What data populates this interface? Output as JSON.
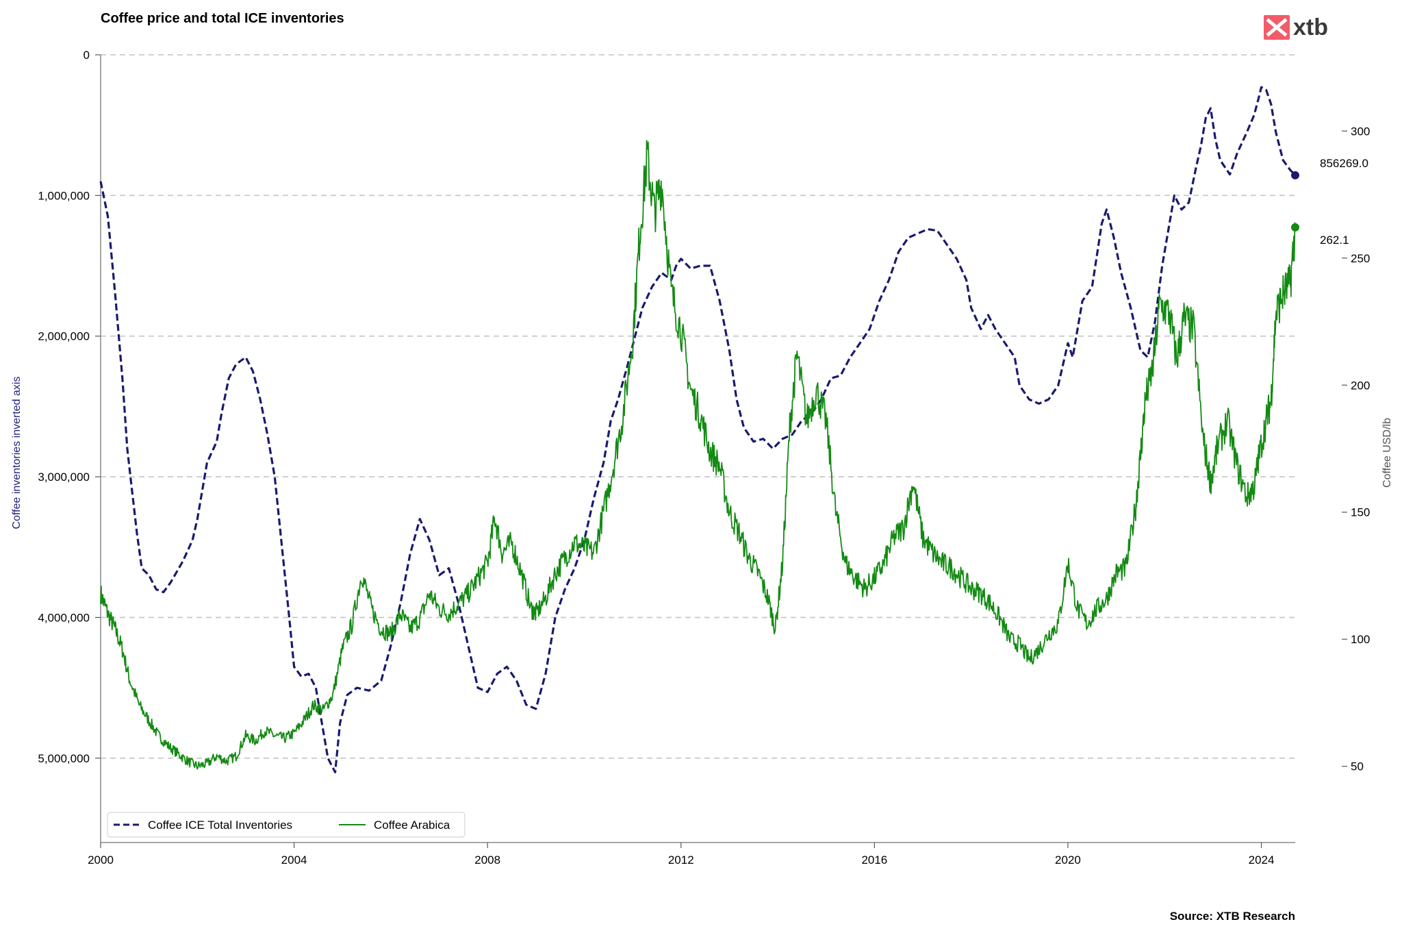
{
  "brand": {
    "name": "xtb",
    "accent": "#f25c69",
    "text_color": "#3a3a3a"
  },
  "source": "Source: XTB Research",
  "chart_data": {
    "type": "line",
    "title": "Coffee price and total ICE inventories",
    "left_axis": {
      "label": "Coffee inventories inverted axis",
      "inverted": true,
      "range": [
        0,
        5600000
      ],
      "ticks": [
        0,
        1000000,
        2000000,
        3000000,
        4000000,
        5000000
      ],
      "tick_labels": [
        "0",
        "1,000,000",
        "2,000,000",
        "3,000,000",
        "4,000,000",
        "5,000,000"
      ],
      "color": "#1f1f7a"
    },
    "right_axis": {
      "label": "Coffee USD/lb",
      "range": [
        20,
        330
      ],
      "ticks": [
        50,
        100,
        150,
        200,
        250,
        300
      ],
      "tick_labels": [
        "50",
        "100",
        "150",
        "200",
        "250",
        "300"
      ],
      "color": "#555555"
    },
    "x_axis": {
      "range": [
        2000,
        2024.7
      ],
      "ticks": [
        2000,
        2004,
        2008,
        2012,
        2016,
        2020,
        2024
      ],
      "tick_labels": [
        "2000",
        "2004",
        "2008",
        "2012",
        "2016",
        "2020",
        "2024"
      ]
    },
    "grid": "horizontal dashed",
    "legend_position": "bottom-left",
    "series": [
      {
        "name": "Coffee ICE Total Inventories",
        "axis": "left",
        "color": "#1a1a6e",
        "style": "dashed",
        "last_value_label": "856269.0",
        "points": [
          [
            2000.0,
            900000
          ],
          [
            2000.15,
            1150000
          ],
          [
            2000.3,
            1700000
          ],
          [
            2000.45,
            2300000
          ],
          [
            2000.55,
            2800000
          ],
          [
            2000.65,
            3100000
          ],
          [
            2000.75,
            3400000
          ],
          [
            2000.85,
            3650000
          ],
          [
            2001.0,
            3700000
          ],
          [
            2001.15,
            3800000
          ],
          [
            2001.3,
            3820000
          ],
          [
            2001.45,
            3750000
          ],
          [
            2001.7,
            3600000
          ],
          [
            2001.9,
            3450000
          ],
          [
            2002.0,
            3300000
          ],
          [
            2002.2,
            2900000
          ],
          [
            2002.4,
            2750000
          ],
          [
            2002.5,
            2550000
          ],
          [
            2002.65,
            2300000
          ],
          [
            2002.8,
            2200000
          ],
          [
            2003.0,
            2150000
          ],
          [
            2003.15,
            2250000
          ],
          [
            2003.3,
            2450000
          ],
          [
            2003.45,
            2700000
          ],
          [
            2003.6,
            3000000
          ],
          [
            2003.75,
            3500000
          ],
          [
            2003.9,
            4000000
          ],
          [
            2004.0,
            4350000
          ],
          [
            2004.15,
            4420000
          ],
          [
            2004.3,
            4400000
          ],
          [
            2004.45,
            4500000
          ],
          [
            2004.55,
            4700000
          ],
          [
            2004.7,
            5000000
          ],
          [
            2004.85,
            5100000
          ],
          [
            2004.95,
            4750000
          ],
          [
            2005.1,
            4550000
          ],
          [
            2005.3,
            4500000
          ],
          [
            2005.55,
            4520000
          ],
          [
            2005.8,
            4450000
          ],
          [
            2006.0,
            4200000
          ],
          [
            2006.2,
            3900000
          ],
          [
            2006.4,
            3550000
          ],
          [
            2006.6,
            3300000
          ],
          [
            2006.8,
            3450000
          ],
          [
            2007.0,
            3700000
          ],
          [
            2007.2,
            3650000
          ],
          [
            2007.4,
            3900000
          ],
          [
            2007.6,
            4200000
          ],
          [
            2007.8,
            4500000
          ],
          [
            2008.0,
            4530000
          ],
          [
            2008.2,
            4400000
          ],
          [
            2008.4,
            4350000
          ],
          [
            2008.6,
            4450000
          ],
          [
            2008.8,
            4620000
          ],
          [
            2009.0,
            4650000
          ],
          [
            2009.2,
            4400000
          ],
          [
            2009.4,
            4000000
          ],
          [
            2009.6,
            3800000
          ],
          [
            2009.8,
            3650000
          ],
          [
            2010.0,
            3450000
          ],
          [
            2010.2,
            3150000
          ],
          [
            2010.4,
            2900000
          ],
          [
            2010.55,
            2600000
          ],
          [
            2010.7,
            2450000
          ],
          [
            2010.9,
            2200000
          ],
          [
            2011.05,
            2000000
          ],
          [
            2011.2,
            1800000
          ],
          [
            2011.4,
            1650000
          ],
          [
            2011.6,
            1550000
          ],
          [
            2011.8,
            1600000
          ],
          [
            2011.9,
            1500000
          ],
          [
            2012.0,
            1450000
          ],
          [
            2012.2,
            1520000
          ],
          [
            2012.4,
            1500000
          ],
          [
            2012.6,
            1500000
          ],
          [
            2012.8,
            1750000
          ],
          [
            2013.0,
            2100000
          ],
          [
            2013.15,
            2450000
          ],
          [
            2013.3,
            2650000
          ],
          [
            2013.5,
            2750000
          ],
          [
            2013.7,
            2730000
          ],
          [
            2013.9,
            2800000
          ],
          [
            2014.1,
            2730000
          ],
          [
            2014.3,
            2700000
          ],
          [
            2014.5,
            2600000
          ],
          [
            2014.7,
            2550000
          ],
          [
            2014.9,
            2450000
          ],
          [
            2015.1,
            2300000
          ],
          [
            2015.3,
            2280000
          ],
          [
            2015.5,
            2150000
          ],
          [
            2015.7,
            2050000
          ],
          [
            2015.9,
            1950000
          ],
          [
            2016.1,
            1750000
          ],
          [
            2016.3,
            1600000
          ],
          [
            2016.5,
            1400000
          ],
          [
            2016.7,
            1300000
          ],
          [
            2016.9,
            1270000
          ],
          [
            2017.1,
            1240000
          ],
          [
            2017.3,
            1250000
          ],
          [
            2017.5,
            1350000
          ],
          [
            2017.7,
            1450000
          ],
          [
            2017.9,
            1600000
          ],
          [
            2018.0,
            1800000
          ],
          [
            2018.2,
            1950000
          ],
          [
            2018.35,
            1850000
          ],
          [
            2018.5,
            1950000
          ],
          [
            2018.7,
            2050000
          ],
          [
            2018.9,
            2150000
          ],
          [
            2019.0,
            2350000
          ],
          [
            2019.2,
            2450000
          ],
          [
            2019.4,
            2480000
          ],
          [
            2019.6,
            2450000
          ],
          [
            2019.8,
            2350000
          ],
          [
            2020.0,
            2050000
          ],
          [
            2020.1,
            2150000
          ],
          [
            2020.3,
            1750000
          ],
          [
            2020.5,
            1650000
          ],
          [
            2020.7,
            1200000
          ],
          [
            2020.8,
            1100000
          ],
          [
            2020.95,
            1300000
          ],
          [
            2021.1,
            1550000
          ],
          [
            2021.3,
            1800000
          ],
          [
            2021.5,
            2100000
          ],
          [
            2021.65,
            2150000
          ],
          [
            2021.8,
            1900000
          ],
          [
            2021.95,
            1500000
          ],
          [
            2022.1,
            1200000
          ],
          [
            2022.2,
            1000000
          ],
          [
            2022.35,
            1100000
          ],
          [
            2022.5,
            1050000
          ],
          [
            2022.65,
            800000
          ],
          [
            2022.75,
            650000
          ],
          [
            2022.85,
            450000
          ],
          [
            2022.95,
            380000
          ],
          [
            2023.05,
            600000
          ],
          [
            2023.15,
            750000
          ],
          [
            2023.35,
            850000
          ],
          [
            2023.5,
            700000
          ],
          [
            2023.7,
            550000
          ],
          [
            2023.85,
            430000
          ],
          [
            2023.95,
            300000
          ],
          [
            2024.0,
            230000
          ],
          [
            2024.1,
            250000
          ],
          [
            2024.2,
            350000
          ],
          [
            2024.3,
            550000
          ],
          [
            2024.45,
            750000
          ],
          [
            2024.6,
            820000
          ],
          [
            2024.7,
            856269
          ]
        ]
      },
      {
        "name": "Coffee Arabica",
        "axis": "right",
        "color": "#138a13",
        "style": "solid",
        "last_value_label": "262.1",
        "points": [
          [
            2000.0,
            118
          ],
          [
            2000.15,
            110
          ],
          [
            2000.3,
            104
          ],
          [
            2000.45,
            96
          ],
          [
            2000.6,
            84
          ],
          [
            2000.8,
            74
          ],
          [
            2001.0,
            68
          ],
          [
            2001.2,
            62
          ],
          [
            2001.4,
            58
          ],
          [
            2001.6,
            55
          ],
          [
            2001.8,
            52
          ],
          [
            2002.0,
            50
          ],
          [
            2002.2,
            51
          ],
          [
            2002.4,
            54
          ],
          [
            2002.6,
            52
          ],
          [
            2002.8,
            54
          ],
          [
            2003.0,
            62
          ],
          [
            2003.2,
            60
          ],
          [
            2003.4,
            64
          ],
          [
            2003.6,
            62
          ],
          [
            2003.8,
            61
          ],
          [
            2004.0,
            63
          ],
          [
            2004.2,
            68
          ],
          [
            2004.4,
            74
          ],
          [
            2004.6,
            72
          ],
          [
            2004.8,
            78
          ],
          [
            2005.0,
            96
          ],
          [
            2005.2,
            106
          ],
          [
            2005.4,
            126
          ],
          [
            2005.6,
            112
          ],
          [
            2005.8,
            104
          ],
          [
            2006.0,
            102
          ],
          [
            2006.2,
            110
          ],
          [
            2006.4,
            104
          ],
          [
            2006.6,
            108
          ],
          [
            2006.8,
            118
          ],
          [
            2007.0,
            112
          ],
          [
            2007.2,
            110
          ],
          [
            2007.4,
            114
          ],
          [
            2007.6,
            118
          ],
          [
            2007.8,
            124
          ],
          [
            2008.0,
            130
          ],
          [
            2008.15,
            148
          ],
          [
            2008.3,
            134
          ],
          [
            2008.5,
            138
          ],
          [
            2008.7,
            126
          ],
          [
            2008.9,
            112
          ],
          [
            2009.0,
            110
          ],
          [
            2009.2,
            116
          ],
          [
            2009.4,
            126
          ],
          [
            2009.6,
            132
          ],
          [
            2009.8,
            138
          ],
          [
            2010.0,
            136
          ],
          [
            2010.2,
            134
          ],
          [
            2010.4,
            150
          ],
          [
            2010.6,
            168
          ],
          [
            2010.8,
            188
          ],
          [
            2011.0,
            218
          ],
          [
            2011.15,
            260
          ],
          [
            2011.3,
            290
          ],
          [
            2011.45,
            268
          ],
          [
            2011.6,
            280
          ],
          [
            2011.8,
            236
          ],
          [
            2012.0,
            222
          ],
          [
            2012.2,
            198
          ],
          [
            2012.4,
            188
          ],
          [
            2012.6,
            174
          ],
          [
            2012.8,
            168
          ],
          [
            2013.0,
            150
          ],
          [
            2013.2,
            142
          ],
          [
            2013.4,
            132
          ],
          [
            2013.6,
            126
          ],
          [
            2013.8,
            116
          ],
          [
            2013.95,
            104
          ],
          [
            2014.1,
            130
          ],
          [
            2014.25,
            184
          ],
          [
            2014.4,
            212
          ],
          [
            2014.6,
            186
          ],
          [
            2014.8,
            198
          ],
          [
            2015.0,
            186
          ],
          [
            2015.2,
            150
          ],
          [
            2015.4,
            130
          ],
          [
            2015.6,
            124
          ],
          [
            2015.8,
            120
          ],
          [
            2016.0,
            124
          ],
          [
            2016.2,
            130
          ],
          [
            2016.4,
            140
          ],
          [
            2016.6,
            144
          ],
          [
            2016.8,
            162
          ],
          [
            2017.0,
            140
          ],
          [
            2017.2,
            134
          ],
          [
            2017.4,
            130
          ],
          [
            2017.6,
            128
          ],
          [
            2017.8,
            124
          ],
          [
            2018.0,
            120
          ],
          [
            2018.2,
            118
          ],
          [
            2018.4,
            114
          ],
          [
            2018.6,
            108
          ],
          [
            2018.8,
            100
          ],
          [
            2019.0,
            98
          ],
          [
            2019.2,
            92
          ],
          [
            2019.4,
            96
          ],
          [
            2019.6,
            102
          ],
          [
            2019.8,
            106
          ],
          [
            2020.0,
            130
          ],
          [
            2020.2,
            112
          ],
          [
            2020.4,
            106
          ],
          [
            2020.6,
            112
          ],
          [
            2020.8,
            116
          ],
          [
            2021.0,
            126
          ],
          [
            2021.2,
            128
          ],
          [
            2021.4,
            152
          ],
          [
            2021.5,
            172
          ],
          [
            2021.6,
            194
          ],
          [
            2021.75,
            206
          ],
          [
            2021.9,
            232
          ],
          [
            2022.1,
            228
          ],
          [
            2022.25,
            210
          ],
          [
            2022.4,
            226
          ],
          [
            2022.6,
            222
          ],
          [
            2022.8,
            178
          ],
          [
            2022.95,
            162
          ],
          [
            2023.1,
            176
          ],
          [
            2023.3,
            186
          ],
          [
            2023.5,
            168
          ],
          [
            2023.7,
            156
          ],
          [
            2023.85,
            160
          ],
          [
            2023.95,
            172
          ],
          [
            2024.1,
            186
          ],
          [
            2024.2,
            194
          ],
          [
            2024.3,
            228
          ],
          [
            2024.45,
            236
          ],
          [
            2024.6,
            240
          ],
          [
            2024.7,
            262.1
          ]
        ]
      }
    ]
  }
}
